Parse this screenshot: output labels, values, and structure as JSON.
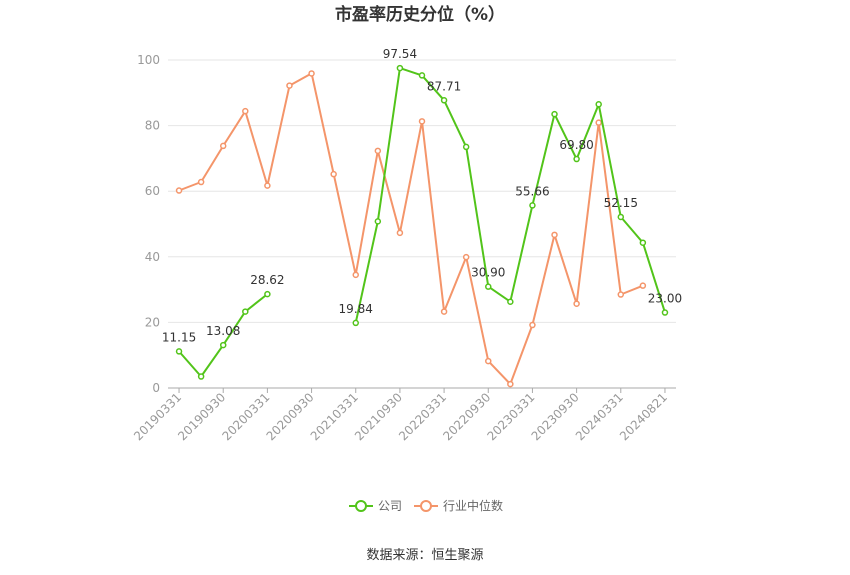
{
  "chart_data": {
    "type": "line",
    "title": "市盈率历史分位（%）",
    "xlabel": "",
    "ylabel": "",
    "ylim": [
      0,
      100
    ],
    "y_ticks": [
      0,
      20,
      40,
      60,
      80,
      100
    ],
    "x_tick_labels": [
      "20190331",
      "20190930",
      "20200331",
      "20200930",
      "20210331",
      "20210930",
      "20220331",
      "20220930",
      "20230331",
      "20230930",
      "20240331",
      "20240821"
    ],
    "grid": true,
    "legend_position": "bottom",
    "source": "数据来源：恒生聚源",
    "series": [
      {
        "name": "公司",
        "color": "#52c41a",
        "values": [
          11.15,
          3.5,
          13.08,
          23.3,
          28.62,
          null,
          null,
          null,
          19.84,
          50.8,
          97.54,
          95.3,
          87.71,
          73.5,
          30.9,
          26.3,
          55.66,
          83.5,
          69.8,
          86.5,
          52.15,
          44.3,
          23.0
        ],
        "labels": {
          "0": "11.15",
          "2": "13.08",
          "4": "28.62",
          "8": "19.84",
          "10": "97.54",
          "12": "87.71",
          "14": "30.90",
          "16": "55.66",
          "18": "69.80",
          "20": "52.15",
          "22": "23.00"
        }
      },
      {
        "name": "行业中位数",
        "color": "#f4956a",
        "values": [
          60.2,
          62.8,
          73.8,
          84.4,
          61.7,
          92.2,
          95.9,
          65.2,
          34.5,
          72.3,
          47.3,
          81.3,
          23.3,
          39.9,
          8.2,
          1.2,
          19.2,
          46.7,
          25.7,
          80.9,
          28.5,
          31.2,
          null
        ]
      }
    ]
  }
}
